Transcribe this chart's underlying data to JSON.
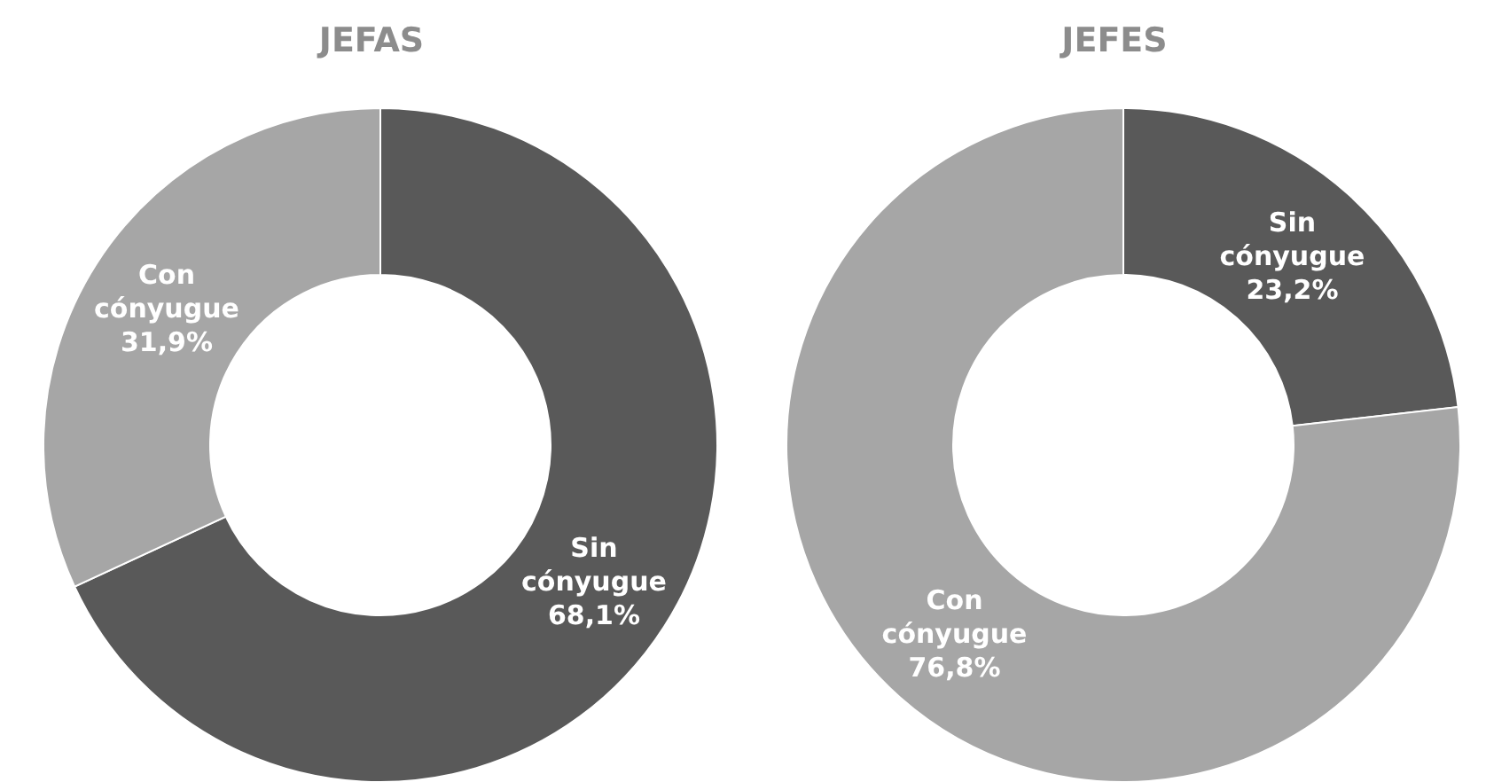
{
  "chart_data": [
    {
      "type": "donut",
      "title": "JEFAS",
      "categories": [
        "Sin cónyugue",
        "Con cónyugue"
      ],
      "values": [
        68.1,
        31.9
      ],
      "colors": [
        "#595959",
        "#a6a6a6"
      ],
      "value_labels": [
        "68,1%",
        "31,9%"
      ],
      "legend": false
    },
    {
      "type": "donut",
      "title": "JEFES",
      "categories": [
        "Sin cónyugue",
        "Con cónyugue"
      ],
      "values": [
        23.2,
        76.8
      ],
      "colors": [
        "#595959",
        "#a6a6a6"
      ],
      "value_labels": [
        "23,2%",
        "76,8%"
      ],
      "legend": false
    }
  ]
}
